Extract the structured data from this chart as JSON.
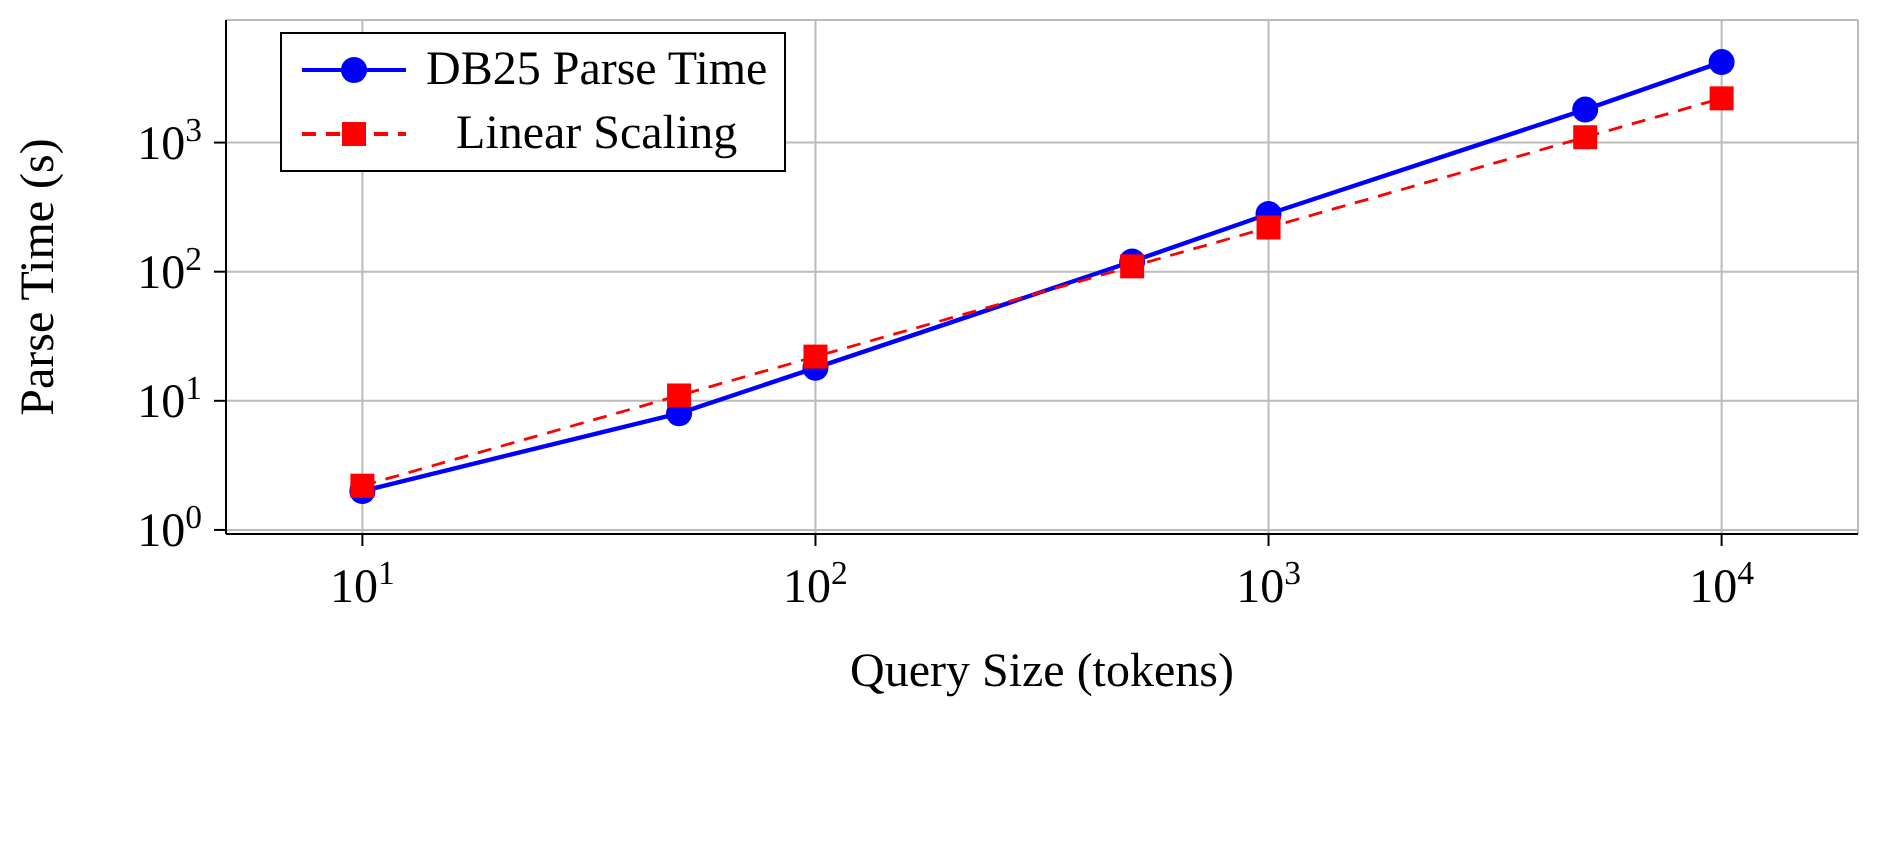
{
  "chart_data": {
    "type": "line",
    "xlabel": "Query Size (tokens)",
    "ylabel": "Parse Time (s)",
    "log": "xy",
    "grid": true,
    "legend": "top left",
    "x": [
      10,
      50,
      100,
      500,
      1000,
      5000,
      10000
    ],
    "xlim": [
      5,
      20000
    ],
    "xticks": [
      {
        "value": 10,
        "label": "10$^{1}$"
      },
      {
        "value": 100,
        "label": "10$^{2}$"
      },
      {
        "value": 1000,
        "label": "10$^{3}$"
      },
      {
        "value": 10000,
        "label": "10$^{4}$"
      }
    ],
    "ylim": [
      0.93,
      8900
    ],
    "yticks": [
      {
        "value": 1,
        "label": "10$^{0}$"
      },
      {
        "value": 10,
        "label": "10$^{1}$"
      },
      {
        "value": 100,
        "label": "10$^{2}$"
      },
      {
        "value": 1000,
        "label": "10$^{3}$"
      }
    ],
    "series": [
      {
        "name": "DB25 Parse Time",
        "color": "#0000ff",
        "marker": "circle",
        "line_style": "solid",
        "values": [
          2,
          8,
          18,
          120,
          280,
          1800,
          4200
        ]
      },
      {
        "name": "Linear Scaling",
        "color": "#ff0000",
        "marker": "square",
        "line_style": "dashed",
        "values": [
          2.2,
          11,
          22,
          110,
          220,
          1100,
          2200
        ]
      }
    ]
  }
}
